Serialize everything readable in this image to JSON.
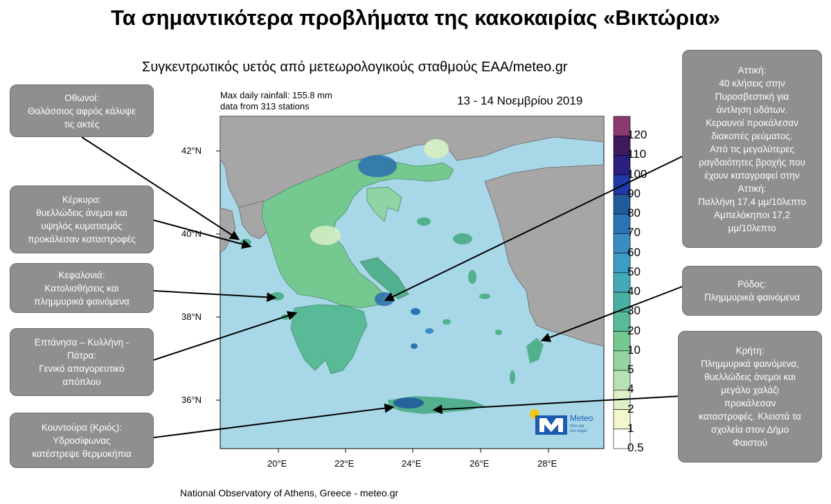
{
  "title": "Τα σημαντικότερα προβλήματα της κακοκαιρίας «Βικτώρια»",
  "subtitle": "Συγκεντρωτικός υετός από μετεωρολογικούς σταθμούς ΕΑΑ/meteo.gr",
  "max_info": {
    "line1": "Max daily rainfall: 155.8 mm",
    "line2": "data from 313 stations"
  },
  "date": "13 - 14 Νοεμβρίου 2019",
  "footer": "National Observatory of Athens, Greece - meteo.gr",
  "logo": {
    "name": "Meteo",
    "tagline": "Όλα για\nτον καιρό"
  },
  "axes": {
    "lat_labels": [
      "42°N",
      "40°N",
      "38°N",
      "36°N"
    ],
    "lon_labels": [
      "20°E",
      "22°E",
      "24°E",
      "26°E",
      "28°E"
    ]
  },
  "colorbar": {
    "levels": [
      "120",
      "110",
      "100",
      "90",
      "80",
      "70",
      "60",
      "50",
      "40",
      "30",
      "20",
      "10",
      "5",
      "4",
      "2",
      "1",
      "0.5"
    ],
    "colors": [
      "#8a3a6f",
      "#3b1a5e",
      "#2a1f80",
      "#1f3aa8",
      "#1f5a9a",
      "#2a74b4",
      "#3a8cc2",
      "#3c9ec4",
      "#44aab8",
      "#47b0a0",
      "#59ba98",
      "#74c890",
      "#94d4a0",
      "#b8e2b4",
      "#dfefc8",
      "#f4f6cc",
      "#ffffff"
    ]
  },
  "map_colors": {
    "sea": "#a8d8e8",
    "land": "#a6a6a6",
    "rain_low": "#8fd5a4",
    "rain_mid": "#52b08e",
    "rain_high": "#2a6fae",
    "light": "#d4ecc4"
  },
  "callouts": {
    "othonoi": [
      "Οθωνοί:",
      "Θαλάσσιος αφρός κάλυψε",
      "τις ακτές"
    ],
    "kerkyra": [
      "Κέρκυρα:",
      "θυελλώδεις άνεμοι και",
      "υψηλός κυματισμός",
      "προκάλεσαν καταστροφές"
    ],
    "kefalonia": [
      "Κεφαλονιά:",
      "Κατολισθήσεις και",
      "πλημμυρικά φαινόμενα"
    ],
    "eptanisa": [
      "Επτάνησα – Κυλλήνη -",
      "Πάτρα:",
      "Γενικό απαγορευτικό",
      "απόπλου"
    ],
    "kountoura": [
      "Κουντούρα (Κριός):",
      "Υδροσίφωνας",
      "κατέστρεψε θερμοκήπια"
    ],
    "attiki": [
      "Αττική:",
      "40 κλήσεις στην",
      "Πυροσβεστική για",
      "άντληση υδάτων.",
      "Κεραυνοί προκάλεσαν",
      "διακοπές ρεύματος.",
      "Από τις μεγαλύτερες",
      "ραγδαιότητες βροχής που",
      "έχουν καταγραφεί στην",
      "Αττική:",
      "Παλλήνη 17,4 μμ/10λεπτο",
      "Αμπελόκηποι 17,2",
      "μμ/10λεπτο"
    ],
    "rodos": [
      "Ρόδος:",
      "Πλημμυρικά φαινόμενα"
    ],
    "kriti": [
      "Κρήτη:",
      "Πλημμυρικά φαινόμενα,",
      "θυελλώδεις άνεμοι και",
      "μεγάλο χαλάζι",
      "προκάλεσαν",
      "καταστροφές. Κλειστά τα",
      "σχολεία στον Δήμο",
      "Φαιστού"
    ]
  }
}
